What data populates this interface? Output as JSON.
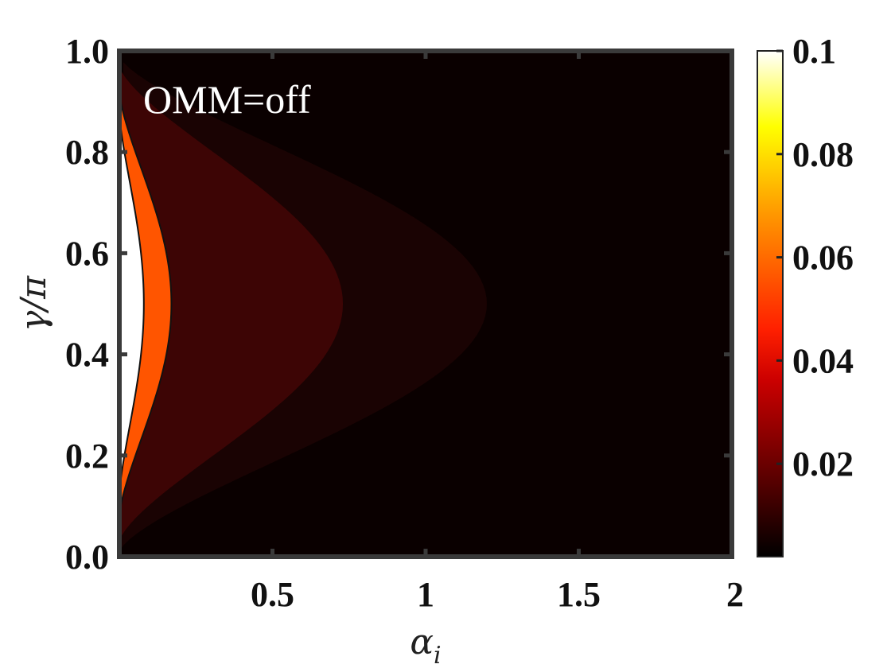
{
  "chart_data": {
    "type": "heatmap",
    "title": "",
    "xlabel": "αi",
    "ylabel": "γ/π",
    "xlim": [
      0,
      2
    ],
    "ylim": [
      0,
      1
    ],
    "x_ticks": [
      {
        "value": 0.5,
        "label": "0.5"
      },
      {
        "value": 1,
        "label": "1"
      },
      {
        "value": 1.5,
        "label": "1.5"
      },
      {
        "value": 2,
        "label": "2"
      }
    ],
    "y_ticks": [
      {
        "value": 0.0,
        "label": "0.0"
      },
      {
        "value": 0.2,
        "label": "0.2"
      },
      {
        "value": 0.4,
        "label": "0.4"
      },
      {
        "value": 0.6,
        "label": "0.6"
      },
      {
        "value": 0.8,
        "label": "0.8"
      },
      {
        "value": 1.0,
        "label": "1.0"
      }
    ],
    "annotation": "OMM=off",
    "colorbar": {
      "min": 0.002,
      "max": 0.1,
      "colormap": "hot",
      "ticks": [
        {
          "value": 0.02,
          "label": "0.02"
        },
        {
          "value": 0.04,
          "label": "0.04"
        },
        {
          "value": 0.06,
          "label": "0.06"
        },
        {
          "value": 0.08,
          "label": "0.08"
        },
        {
          "value": 0.1,
          "label": "0.1"
        }
      ]
    },
    "background_color": "#0a0000",
    "contour_regions": [
      {
        "level": 0.004,
        "color": "#1a0303",
        "peak_alpha": 1.2,
        "gamma_bottom": 0.01,
        "gamma_top": 0.99
      },
      {
        "level": 0.008,
        "color": "#3d0505",
        "peak_alpha": 0.73,
        "gamma_bottom": 0.03,
        "gamma_top": 0.97
      },
      {
        "level": 0.06,
        "color": "#ff5500",
        "peak_alpha": 0.17,
        "gamma_bottom": 0.08,
        "gamma_top": 0.92
      },
      {
        "level": 0.1,
        "color": "#ffffff",
        "peak_alpha": 0.08,
        "gamma_bottom": 0.12,
        "gamma_top": 0.88
      }
    ]
  }
}
